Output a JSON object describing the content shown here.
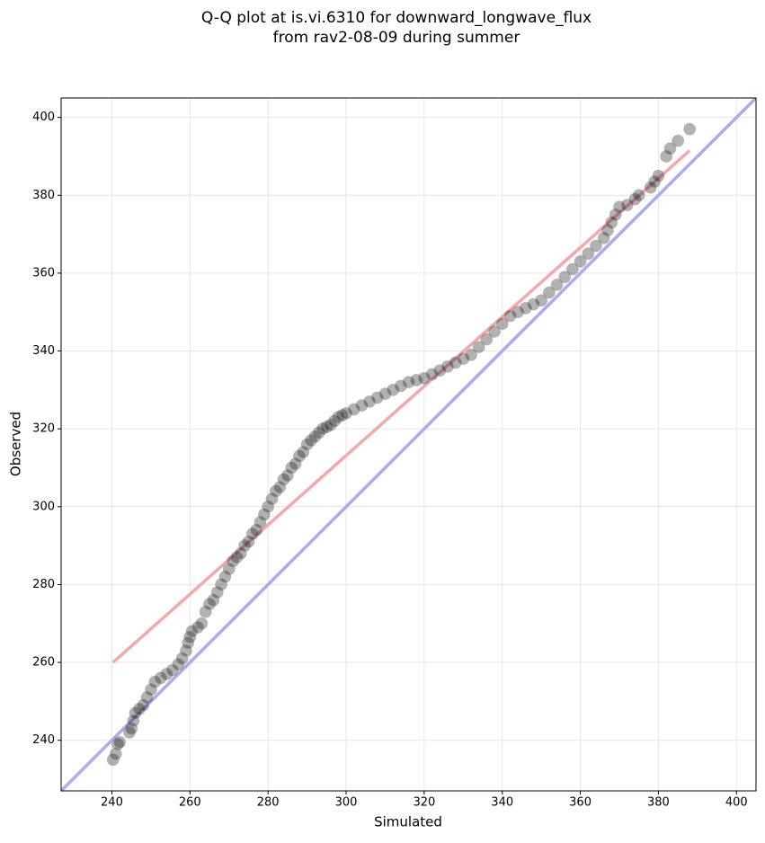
{
  "chart_data": {
    "type": "scatter",
    "title": [
      "Q-Q plot at is.vi.6310 for downward_longwave_flux",
      "from rav2-08-09 during summer"
    ],
    "xlabel": "Simulated",
    "ylabel": "Observed",
    "xlim": [
      227,
      405
    ],
    "ylim": [
      227,
      405
    ],
    "xticks": [
      240,
      260,
      280,
      300,
      320,
      340,
      360,
      380,
      400
    ],
    "yticks": [
      240,
      260,
      280,
      300,
      320,
      340,
      360,
      380,
      400
    ],
    "grid": true,
    "color": "#000000",
    "x": [
      240.3,
      241,
      241.5,
      242,
      244.5,
      245,
      245.5,
      246,
      247,
      248,
      249,
      250,
      251,
      252.5,
      254,
      255.5,
      257,
      258,
      259,
      259.5,
      260,
      260.5,
      262,
      263,
      264,
      265,
      266,
      267,
      268,
      269,
      270,
      271,
      272,
      273,
      274,
      275,
      276,
      277,
      278,
      279,
      280,
      281,
      282,
      283,
      284,
      285,
      286,
      287,
      288,
      289,
      290,
      291,
      292,
      293,
      294,
      295,
      296,
      297,
      298,
      299,
      300,
      302,
      304,
      306,
      308,
      310,
      312,
      314,
      316,
      318,
      320,
      322,
      324,
      326,
      328,
      330,
      332,
      334,
      336,
      338,
      340,
      342,
      344,
      346,
      348,
      350,
      352,
      354,
      356,
      358,
      360,
      362,
      364,
      366,
      367,
      368,
      369,
      370,
      372,
      374,
      375,
      378,
      379,
      380,
      382,
      383,
      385,
      388
    ],
    "y": [
      235,
      236.5,
      239,
      239.5,
      242,
      243,
      245,
      247,
      248,
      249,
      251,
      253,
      255,
      256,
      257,
      258,
      259.5,
      261,
      263,
      265,
      266.5,
      268,
      269,
      270,
      273,
      275,
      276,
      278,
      280,
      282,
      284,
      286,
      287,
      288,
      290,
      291,
      293,
      294,
      296,
      298,
      300,
      302,
      304,
      305,
      307,
      308,
      310,
      311,
      313,
      314,
      316,
      317,
      318,
      319,
      320,
      320.5,
      321,
      322,
      323,
      323.5,
      324,
      325,
      326,
      327,
      328,
      329,
      330,
      331,
      332,
      332.5,
      333,
      334,
      335,
      336,
      337,
      338,
      339,
      341,
      343,
      345,
      347,
      349,
      350,
      351,
      352,
      353,
      355,
      357,
      359,
      361,
      363,
      365,
      367,
      369,
      371,
      373,
      375,
      377,
      377.5,
      379,
      380,
      382,
      383.5,
      385,
      390,
      392,
      394,
      397
    ],
    "reference_lines": [
      {
        "x": [
          227,
          405
        ],
        "y": [
          227,
          405
        ],
        "color": "#aaaaf5"
      },
      {
        "x": [
          240.3,
          388
        ],
        "y": [
          260,
          391.5
        ],
        "color": "#f5a8a8"
      }
    ]
  }
}
